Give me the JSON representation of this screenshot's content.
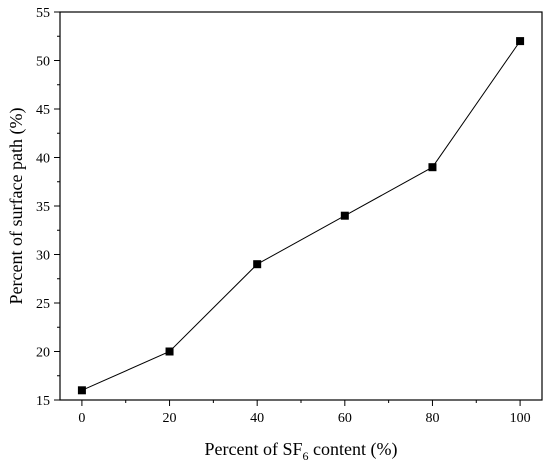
{
  "chart_data": {
    "type": "line",
    "x": [
      0,
      20,
      40,
      60,
      80,
      100
    ],
    "y": [
      16,
      20,
      29,
      34,
      39,
      52
    ],
    "xlim": [
      -5,
      105
    ],
    "ylim": [
      15,
      55
    ],
    "xticks": [
      0,
      20,
      40,
      60,
      80,
      100
    ],
    "yticks": [
      15,
      20,
      25,
      30,
      35,
      40,
      45,
      50,
      55
    ],
    "xlabel": {
      "before": "Percent of SF",
      "subscript": "6",
      "after": " content (%)"
    },
    "ylabel": "Percent of surface path (%)",
    "marker": "square",
    "grid": false,
    "legend": "none",
    "line_color": "#000000",
    "marker_color": "#000000"
  }
}
